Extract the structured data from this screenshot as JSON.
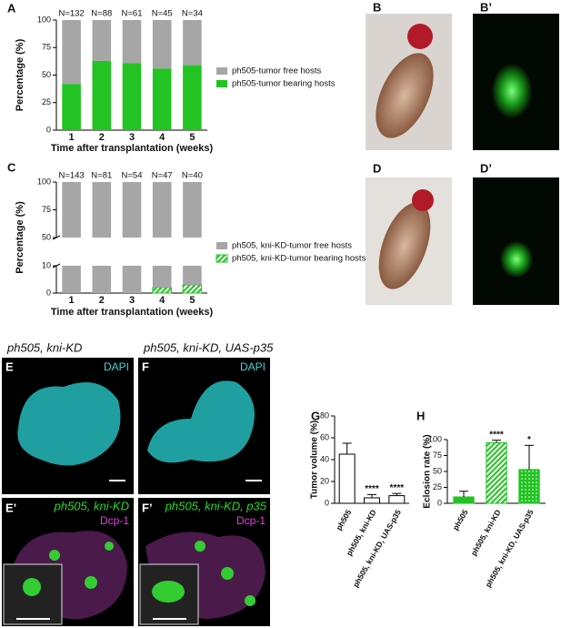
{
  "chart_data": [
    {
      "type": "bar",
      "panel": "A",
      "stacked": true,
      "ylabel": "Percentage (%)",
      "xlabel": "Time after transplantation (weeks)",
      "categories": [
        "1",
        "2",
        "3",
        "4",
        "5"
      ],
      "top_labels": [
        "N=132",
        "N=88",
        "N=61",
        "N=45",
        "N=34"
      ],
      "series": [
        {
          "name": "ph505-tumor bearing hosts",
          "color": "#22c322",
          "values": [
            42,
            63,
            61,
            56,
            59
          ]
        },
        {
          "name": "ph505-tumor free hosts",
          "color": "#a6a6a6",
          "values": [
            58,
            37,
            39,
            44,
            41
          ]
        }
      ],
      "ylim": [
        0,
        100
      ],
      "yticks": [
        0,
        25,
        50,
        75,
        100
      ]
    },
    {
      "type": "bar",
      "panel": "C",
      "stacked": true,
      "ylabel": "Percentage (%)",
      "xlabel": "Time after transplantation (weeks)",
      "categories": [
        "1",
        "2",
        "3",
        "4",
        "5"
      ],
      "top_labels": [
        "N=143",
        "N=81",
        "N=54",
        "N=47",
        "N=40"
      ],
      "series": [
        {
          "name": "ph505, kni-KD-tumor bearing hosts",
          "color": "#22c322",
          "pattern": "hatch",
          "values": [
            0,
            0,
            0,
            2,
            3
          ]
        },
        {
          "name": "ph505, kni-KD-tumor free hosts",
          "color": "#a6a6a6",
          "values": [
            100,
            100,
            100,
            98,
            97
          ]
        }
      ],
      "ylim": [
        0,
        100
      ],
      "ylim_segments": [
        [
          0,
          10
        ],
        [
          50,
          100
        ]
      ],
      "yticks": [
        0,
        10,
        50,
        75,
        100
      ]
    },
    {
      "type": "bar",
      "panel": "G",
      "ylabel": "Tumor volume (%)",
      "categories": [
        "ph505",
        "ph505, kni-KD",
        "ph505, kni-KD, UAS-p35"
      ],
      "values": [
        45,
        5,
        7
      ],
      "errors": [
        10,
        3,
        2
      ],
      "color": "#ffffff",
      "edgecolor": "#000000",
      "bar_annotations": [
        null,
        "****",
        "****"
      ],
      "ylim": [
        0,
        80
      ],
      "yticks": [
        0,
        20,
        40,
        60,
        80
      ]
    },
    {
      "type": "bar",
      "panel": "H",
      "ylabel": "Eclosion rate (%)",
      "categories": [
        "ph505",
        "ph505, kni-KD",
        "ph505, kni-KD, UAS-p35"
      ],
      "values": [
        10,
        95,
        53
      ],
      "errors": [
        9,
        4,
        38
      ],
      "color": "#22c322",
      "edgecolor": "#22c322",
      "patterns": [
        "solid",
        "hatch",
        "dots"
      ],
      "bar_annotations": [
        null,
        "****",
        "*"
      ],
      "ylim": [
        0,
        100
      ],
      "yticks": [
        0,
        25,
        50,
        75,
        100
      ]
    }
  ],
  "images": [
    {
      "panel": "B"
    },
    {
      "panel": "B’"
    },
    {
      "panel": "D"
    },
    {
      "panel": "D’"
    },
    {
      "panel": "E",
      "title": "ph505, kni-KD",
      "stain": "DAPI"
    },
    {
      "panel": "F",
      "title": "ph505, kni-KD, UAS-p35",
      "stain": "DAPI"
    },
    {
      "panel": "E’",
      "title": "ph505, kni-KD",
      "stain": "Dcp-1"
    },
    {
      "panel": "F’",
      "title": "ph505, kni-KD, p35",
      "stain": "Dcp-1"
    }
  ]
}
